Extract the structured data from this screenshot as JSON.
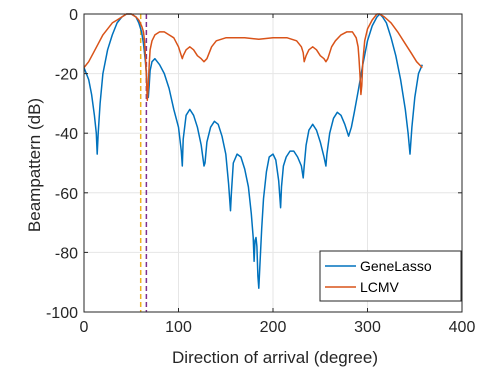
{
  "chart_data": {
    "type": "line",
    "title": "",
    "xlabel": "Direction of arrival (degree)",
    "ylabel": "Beampattern (dB)",
    "xlim": [
      0,
      400
    ],
    "ylim": [
      -100,
      0
    ],
    "xticks": [
      0,
      100,
      200,
      300,
      400
    ],
    "yticks": [
      0,
      -20,
      -40,
      -60,
      -80,
      -100
    ],
    "grid": true,
    "legend_position": "bottom-right",
    "vlines": [
      {
        "x": 60,
        "color": "#EDB120",
        "style": "dashed"
      },
      {
        "x": 66,
        "color": "#7E2F8E",
        "style": "dashed"
      }
    ],
    "series": [
      {
        "name": "GeneLasso",
        "color": "#0072BD",
        "points": [
          [
            0,
            -18
          ],
          [
            5,
            -22
          ],
          [
            8,
            -27
          ],
          [
            11,
            -34
          ],
          [
            13,
            -40
          ],
          [
            14,
            -47
          ],
          [
            15,
            -40
          ],
          [
            17,
            -30
          ],
          [
            20,
            -20
          ],
          [
            25,
            -12
          ],
          [
            30,
            -7
          ],
          [
            35,
            -3
          ],
          [
            40,
            -1
          ],
          [
            45,
            0
          ],
          [
            50,
            0
          ],
          [
            55,
            -1
          ],
          [
            58,
            -3
          ],
          [
            61,
            -6
          ],
          [
            63,
            -10
          ],
          [
            65,
            -16
          ],
          [
            66,
            -20
          ],
          [
            67,
            -26
          ],
          [
            68,
            -28
          ],
          [
            69,
            -24
          ],
          [
            70,
            -19
          ],
          [
            72,
            -16
          ],
          [
            75,
            -15
          ],
          [
            80,
            -17
          ],
          [
            85,
            -20
          ],
          [
            90,
            -25
          ],
          [
            95,
            -32
          ],
          [
            100,
            -38
          ],
          [
            103,
            -46
          ],
          [
            104,
            -51
          ],
          [
            105,
            -42
          ],
          [
            108,
            -34
          ],
          [
            112,
            -32
          ],
          [
            116,
            -34
          ],
          [
            120,
            -38
          ],
          [
            124,
            -44
          ],
          [
            127,
            -51
          ],
          [
            128,
            -50
          ],
          [
            130,
            -43
          ],
          [
            134,
            -38
          ],
          [
            138,
            -36
          ],
          [
            142,
            -37
          ],
          [
            146,
            -41
          ],
          [
            150,
            -47
          ],
          [
            153,
            -57
          ],
          [
            155,
            -66
          ],
          [
            156,
            -60
          ],
          [
            158,
            -50
          ],
          [
            162,
            -47
          ],
          [
            166,
            -48
          ],
          [
            170,
            -52
          ],
          [
            174,
            -58
          ],
          [
            177,
            -67
          ],
          [
            179,
            -75
          ],
          [
            180,
            -83
          ],
          [
            181,
            -76
          ],
          [
            182,
            -75
          ],
          [
            183,
            -78
          ],
          [
            184,
            -88
          ],
          [
            185,
            -92
          ],
          [
            186,
            -85
          ],
          [
            188,
            -72
          ],
          [
            190,
            -62
          ],
          [
            193,
            -53
          ],
          [
            196,
            -48
          ],
          [
            200,
            -47
          ],
          [
            203,
            -49
          ],
          [
            206,
            -56
          ],
          [
            208,
            -65
          ],
          [
            209,
            -58
          ],
          [
            211,
            -51
          ],
          [
            214,
            -48
          ],
          [
            218,
            -46
          ],
          [
            222,
            -46
          ],
          [
            226,
            -48
          ],
          [
            230,
            -51
          ],
          [
            232,
            -55
          ],
          [
            233,
            -51
          ],
          [
            235,
            -44
          ],
          [
            238,
            -39
          ],
          [
            242,
            -37
          ],
          [
            246,
            -39
          ],
          [
            250,
            -43
          ],
          [
            254,
            -48
          ],
          [
            256,
            -51
          ],
          [
            257,
            -47
          ],
          [
            260,
            -40
          ],
          [
            264,
            -35
          ],
          [
            268,
            -33
          ],
          [
            272,
            -34
          ],
          [
            276,
            -37
          ],
          [
            280,
            -41
          ],
          [
            283,
            -38
          ],
          [
            286,
            -33
          ],
          [
            290,
            -26
          ],
          [
            295,
            -17
          ],
          [
            300,
            -9
          ],
          [
            305,
            -4
          ],
          [
            310,
            -1
          ],
          [
            313,
            0
          ],
          [
            316,
            -1
          ],
          [
            320,
            -3
          ],
          [
            325,
            -8
          ],
          [
            330,
            -14
          ],
          [
            335,
            -22
          ],
          [
            340,
            -32
          ],
          [
            343,
            -40
          ],
          [
            345,
            -47
          ],
          [
            347,
            -38
          ],
          [
            350,
            -28
          ],
          [
            354,
            -20
          ],
          [
            358,
            -17
          ]
        ]
      },
      {
        "name": "LCMV",
        "color": "#D95319",
        "points": [
          [
            0,
            -18
          ],
          [
            5,
            -16
          ],
          [
            10,
            -13
          ],
          [
            15,
            -10
          ],
          [
            20,
            -7
          ],
          [
            25,
            -5
          ],
          [
            30,
            -3
          ],
          [
            35,
            -2
          ],
          [
            40,
            -1
          ],
          [
            45,
            0
          ],
          [
            50,
            0
          ],
          [
            55,
            -1
          ],
          [
            58,
            -2
          ],
          [
            61,
            -4
          ],
          [
            63,
            -6
          ],
          [
            64,
            -9
          ],
          [
            65,
            -14
          ],
          [
            66,
            -21
          ],
          [
            67,
            -29
          ],
          [
            68,
            -24
          ],
          [
            69,
            -17
          ],
          [
            70,
            -12
          ],
          [
            72,
            -9
          ],
          [
            75,
            -7
          ],
          [
            80,
            -6
          ],
          [
            85,
            -6
          ],
          [
            90,
            -7
          ],
          [
            95,
            -8
          ],
          [
            100,
            -11
          ],
          [
            103,
            -14
          ],
          [
            104,
            -15
          ],
          [
            105,
            -14
          ],
          [
            108,
            -12
          ],
          [
            112,
            -11
          ],
          [
            116,
            -12
          ],
          [
            120,
            -14
          ],
          [
            124,
            -15
          ],
          [
            127,
            -16
          ],
          [
            130,
            -15
          ],
          [
            135,
            -11
          ],
          [
            140,
            -9
          ],
          [
            150,
            -8
          ],
          [
            170,
            -8
          ],
          [
            185,
            -8.5
          ],
          [
            200,
            -8
          ],
          [
            215,
            -8
          ],
          [
            225,
            -9
          ],
          [
            230,
            -11
          ],
          [
            232,
            -13
          ],
          [
            233,
            -16
          ],
          [
            235,
            -14
          ],
          [
            238,
            -12
          ],
          [
            242,
            -11
          ],
          [
            246,
            -12
          ],
          [
            250,
            -14
          ],
          [
            254,
            -15
          ],
          [
            256,
            -16
          ],
          [
            258,
            -15
          ],
          [
            262,
            -11
          ],
          [
            266,
            -9
          ],
          [
            272,
            -7
          ],
          [
            278,
            -6
          ],
          [
            284,
            -6
          ],
          [
            288,
            -8
          ],
          [
            290,
            -11
          ],
          [
            291,
            -15
          ],
          [
            292,
            -20
          ],
          [
            293,
            -27
          ],
          [
            294,
            -24
          ],
          [
            295,
            -16
          ],
          [
            297,
            -9
          ],
          [
            300,
            -5
          ],
          [
            305,
            -2
          ],
          [
            310,
            0
          ],
          [
            313,
            0
          ],
          [
            318,
            -1
          ],
          [
            325,
            -3
          ],
          [
            332,
            -6
          ],
          [
            340,
            -10
          ],
          [
            346,
            -13
          ],
          [
            352,
            -16
          ],
          [
            358,
            -18
          ]
        ]
      }
    ]
  }
}
